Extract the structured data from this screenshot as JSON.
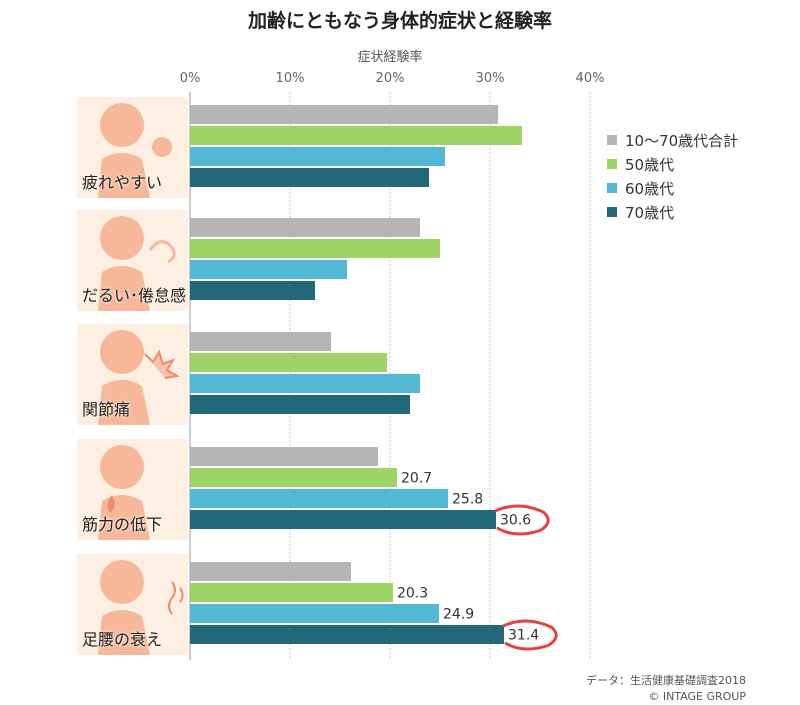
{
  "title": "加齢にともなう身体的症状と経験率",
  "footer": {
    "source": "データ：生活健康基礎調査2018",
    "copyright": "© INTAGE GROUP"
  },
  "colors": {
    "series": [
      "#b5b5b5",
      "#9dd465",
      "#53b8d4",
      "#236878"
    ],
    "panel_bg": "#fdf0e2",
    "figure": "#f7b79a",
    "highlight_ring": "#e8403d"
  },
  "chart_data": {
    "type": "bar",
    "orientation": "horizontal",
    "title": "加齢にともなう身体的症状と経験率",
    "xlabel": "症状経験率",
    "xlim": [
      0,
      40
    ],
    "xticks": [
      "0%",
      "10%",
      "20%",
      "30%",
      "40%"
    ],
    "grid": true,
    "legend_position": "right",
    "categories": [
      "疲れやすい",
      "だるい･倦怠感",
      "関節痛",
      "筋力の低下",
      "足腰の衰え"
    ],
    "category_icons": [
      "tired-person-icon",
      "lethargic-person-icon",
      "joint-pain-person-icon",
      "muscle-weak-person-icon",
      "back-pain-person-icon"
    ],
    "series": [
      {
        "name": "10～70歳代合計",
        "values": [
          30.8,
          23.0,
          14.1,
          18.8,
          16.1
        ]
      },
      {
        "name": "50歳代",
        "values": [
          33.2,
          25.0,
          19.7,
          20.7,
          20.3
        ]
      },
      {
        "name": "60歳代",
        "values": [
          25.5,
          15.7,
          23.0,
          25.8,
          24.9
        ]
      },
      {
        "name": "70歳代",
        "values": [
          23.9,
          12.5,
          22.0,
          30.6,
          31.4
        ]
      }
    ],
    "data_labels": [
      {
        "category": "筋力の低下",
        "series": "50歳代",
        "text": "20.7"
      },
      {
        "category": "筋力の低下",
        "series": "60歳代",
        "text": "25.8"
      },
      {
        "category": "筋力の低下",
        "series": "70歳代",
        "text": "30.6",
        "highlighted": true
      },
      {
        "category": "足腰の衰え",
        "series": "50歳代",
        "text": "20.3"
      },
      {
        "category": "足腰の衰え",
        "series": "60歳代",
        "text": "24.9"
      },
      {
        "category": "足腰の衰え",
        "series": "70歳代",
        "text": "31.4",
        "highlighted": true
      }
    ]
  }
}
